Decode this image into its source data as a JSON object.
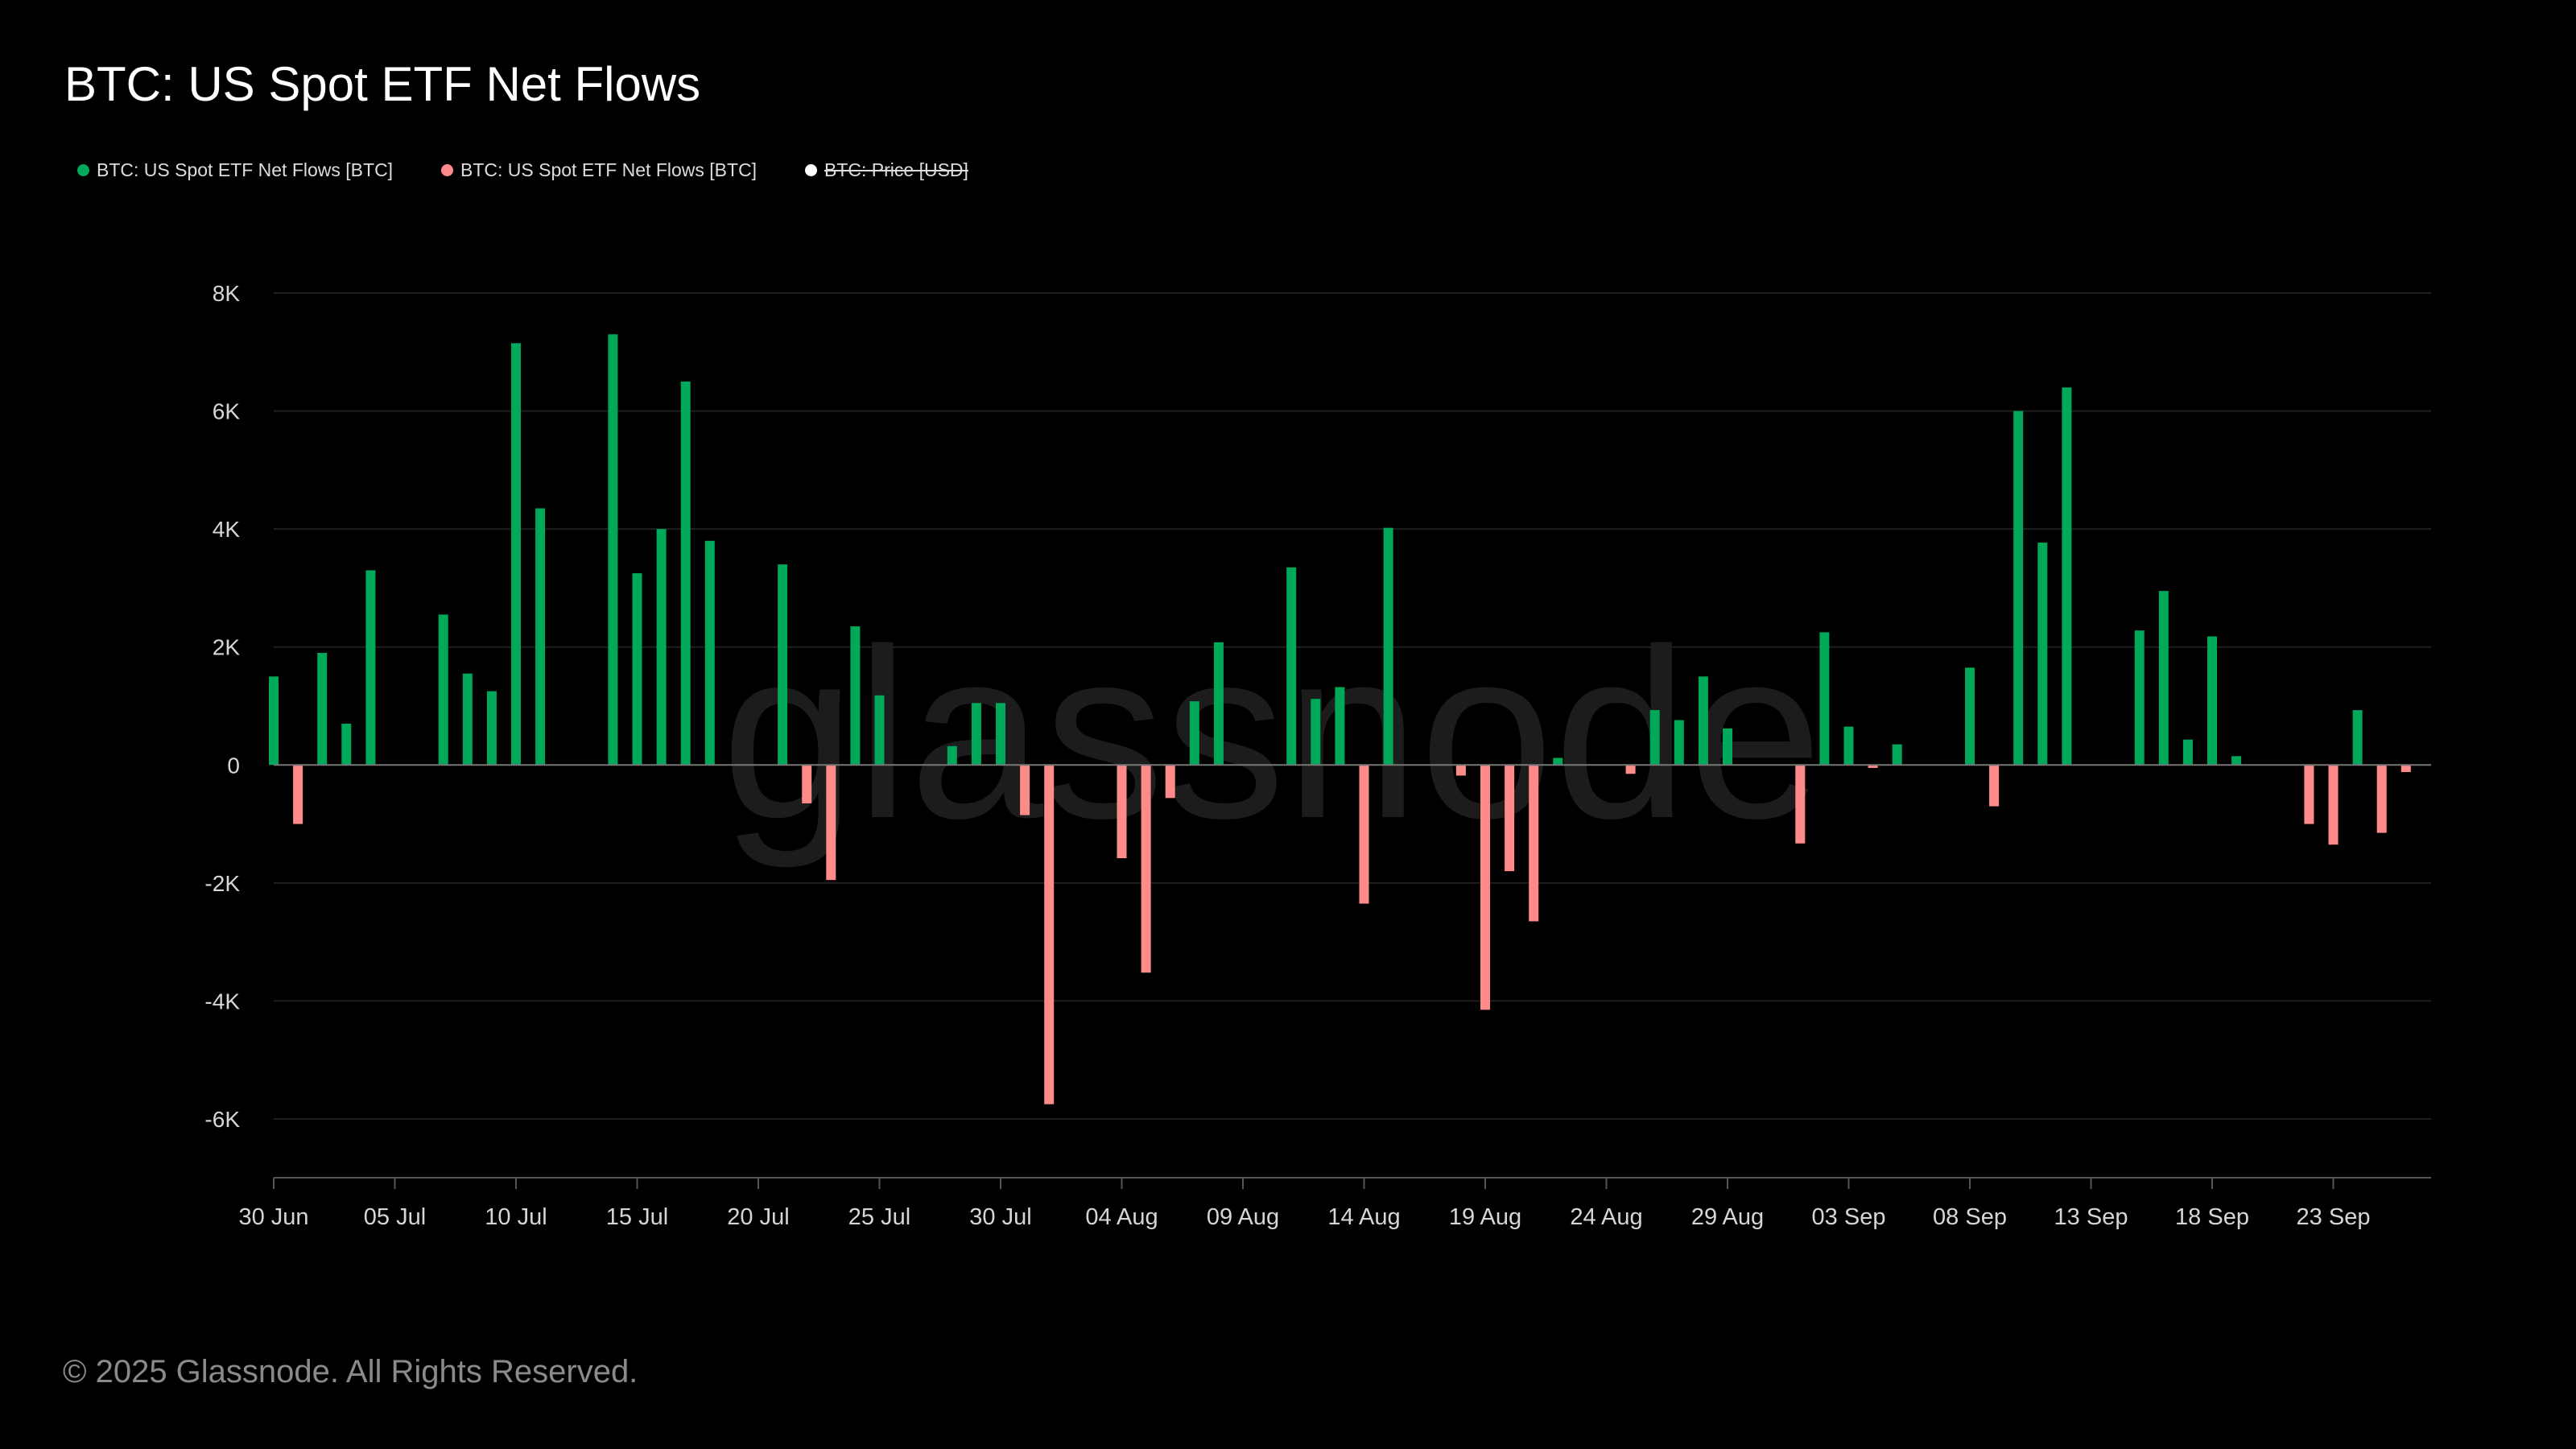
{
  "title": "BTC: US Spot ETF Net Flows",
  "legend": [
    {
      "label": "BTC: US Spot ETF Net Flows [BTC]",
      "color": "#00a85a",
      "struck": false
    },
    {
      "label": "BTC: US Spot ETF Net Flows [BTC]",
      "color": "#ff8a8a",
      "struck": false
    },
    {
      "label": "BTC: Price [USD]",
      "color": "#ffffff",
      "struck": true
    }
  ],
  "watermark": "glassnode",
  "copyright": "© 2025 Glassnode. All Rights Reserved.",
  "colors": {
    "positive": "#00a85a",
    "negative": "#ff8a8a",
    "grid": "#1f1f1f",
    "axis": "#555555",
    "tick_text": "#d6d6d6"
  },
  "chart_data": {
    "type": "bar",
    "title": "BTC: US Spot ETF Net Flows",
    "xlabel": "",
    "ylabel": "",
    "ylim": [
      -7000,
      8000
    ],
    "y_ticks": [
      8000,
      6000,
      4000,
      2000,
      0,
      -2000,
      -4000,
      -6000
    ],
    "y_tick_labels": [
      "8K",
      "6K",
      "4K",
      "2K",
      "0",
      "-2K",
      "-4K",
      "-6K"
    ],
    "x_start": "2025-06-30",
    "x_end": "2025-09-28",
    "x_ticks": [
      {
        "day": 0,
        "label": "30 Jun"
      },
      {
        "day": 5,
        "label": "05 Jul"
      },
      {
        "day": 10,
        "label": "10 Jul"
      },
      {
        "day": 15,
        "label": "15 Jul"
      },
      {
        "day": 20,
        "label": "20 Jul"
      },
      {
        "day": 25,
        "label": "25 Jul"
      },
      {
        "day": 30,
        "label": "30 Jul"
      },
      {
        "day": 35,
        "label": "04 Aug"
      },
      {
        "day": 40,
        "label": "09 Aug"
      },
      {
        "day": 45,
        "label": "14 Aug"
      },
      {
        "day": 50,
        "label": "19 Aug"
      },
      {
        "day": 55,
        "label": "24 Aug"
      },
      {
        "day": 60,
        "label": "29 Aug"
      },
      {
        "day": 65,
        "label": "03 Sep"
      },
      {
        "day": 70,
        "label": "08 Sep"
      },
      {
        "day": 75,
        "label": "13 Sep"
      },
      {
        "day": 80,
        "label": "18 Sep"
      },
      {
        "day": 85,
        "label": "23 Sep"
      }
    ],
    "series": [
      {
        "name": "BTC: US Spot ETF Net Flows [BTC]",
        "unit": "day offset from 30 Jun",
        "points": [
          {
            "day": 0,
            "value": 1500
          },
          {
            "day": 1,
            "value": -1000
          },
          {
            "day": 2,
            "value": 1900
          },
          {
            "day": 3,
            "value": 700
          },
          {
            "day": 4,
            "value": 3300
          },
          {
            "day": 7,
            "value": 2550
          },
          {
            "day": 8,
            "value": 1550
          },
          {
            "day": 9,
            "value": 1250
          },
          {
            "day": 10,
            "value": 7150
          },
          {
            "day": 11,
            "value": 4350
          },
          {
            "day": 14,
            "value": 7300
          },
          {
            "day": 15,
            "value": 3250
          },
          {
            "day": 16,
            "value": 4000
          },
          {
            "day": 17,
            "value": 6500
          },
          {
            "day": 18,
            "value": 3800
          },
          {
            "day": 21,
            "value": 3400
          },
          {
            "day": 22,
            "value": -650
          },
          {
            "day": 23,
            "value": -1950
          },
          {
            "day": 24,
            "value": 2350
          },
          {
            "day": 25,
            "value": 1180
          },
          {
            "day": 28,
            "value": 320
          },
          {
            "day": 29,
            "value": 1050
          },
          {
            "day": 30,
            "value": 1050
          },
          {
            "day": 31,
            "value": -850
          },
          {
            "day": 32,
            "value": -5750
          },
          {
            "day": 35,
            "value": -1580
          },
          {
            "day": 36,
            "value": -3520
          },
          {
            "day": 37,
            "value": -560
          },
          {
            "day": 38,
            "value": 1080
          },
          {
            "day": 39,
            "value": 2080
          },
          {
            "day": 42,
            "value": 3350
          },
          {
            "day": 43,
            "value": 1120
          },
          {
            "day": 44,
            "value": 1320
          },
          {
            "day": 45,
            "value": -2350
          },
          {
            "day": 46,
            "value": 4020
          },
          {
            "day": 49,
            "value": -180
          },
          {
            "day": 50,
            "value": -4150
          },
          {
            "day": 51,
            "value": -1800
          },
          {
            "day": 52,
            "value": -2650
          },
          {
            "day": 53,
            "value": 120
          },
          {
            "day": 56,
            "value": -150
          },
          {
            "day": 57,
            "value": 930
          },
          {
            "day": 58,
            "value": 760
          },
          {
            "day": 59,
            "value": 1500
          },
          {
            "day": 60,
            "value": 620
          },
          {
            "day": 63,
            "value": -1330
          },
          {
            "day": 64,
            "value": 2250
          },
          {
            "day": 65,
            "value": 650
          },
          {
            "day": 66,
            "value": -50
          },
          {
            "day": 67,
            "value": 350
          },
          {
            "day": 70,
            "value": 1650
          },
          {
            "day": 71,
            "value": -700
          },
          {
            "day": 72,
            "value": 6000
          },
          {
            "day": 73,
            "value": 3770
          },
          {
            "day": 74,
            "value": 6400
          },
          {
            "day": 77,
            "value": 2280
          },
          {
            "day": 78,
            "value": 2950
          },
          {
            "day": 79,
            "value": 430
          },
          {
            "day": 80,
            "value": 2180
          },
          {
            "day": 81,
            "value": 150
          },
          {
            "day": 84,
            "value": -1000
          },
          {
            "day": 85,
            "value": -1350
          },
          {
            "day": 86,
            "value": 930
          },
          {
            "day": 87,
            "value": -1150
          },
          {
            "day": 88,
            "value": -120
          }
        ]
      }
    ]
  }
}
